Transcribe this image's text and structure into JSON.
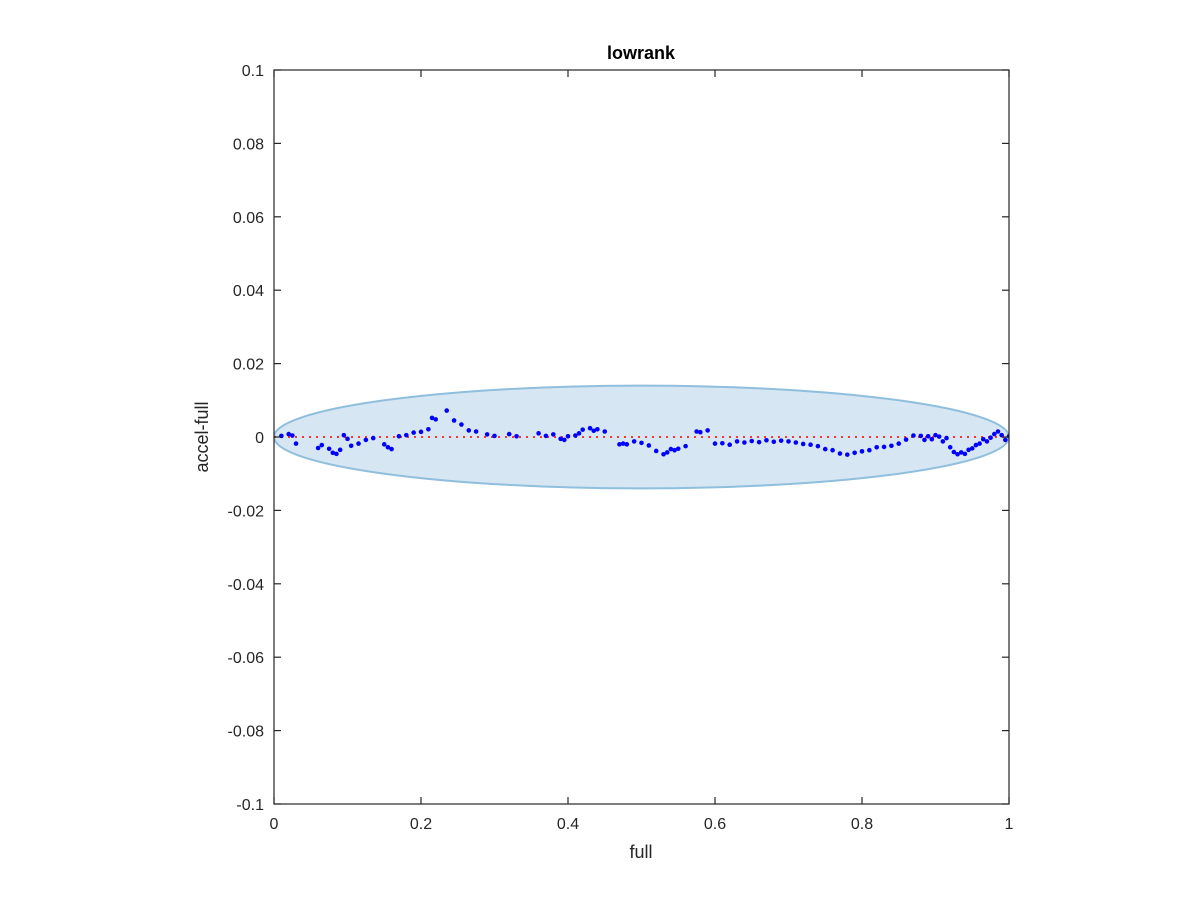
{
  "chart_data": {
    "type": "scatter",
    "title": "lowrank",
    "xlabel": "full",
    "ylabel": "accel-full",
    "xlim": [
      0,
      1
    ],
    "ylim": [
      -0.1,
      0.1
    ],
    "xticks": [
      0,
      0.2,
      0.4,
      0.6,
      0.8,
      1
    ],
    "xtick_labels": [
      "0",
      "0.2",
      "0.4",
      "0.6",
      "0.8",
      "1"
    ],
    "yticks": [
      -0.1,
      -0.08,
      -0.06,
      -0.04,
      -0.02,
      0,
      0.02,
      0.04,
      0.06,
      0.08,
      0.1
    ],
    "ytick_labels": [
      "-0.1",
      "-0.08",
      "-0.06",
      "-0.04",
      "-0.02",
      "0",
      "0.02",
      "0.04",
      "0.06",
      "0.08",
      "0.1"
    ],
    "grid": false,
    "legend": "none",
    "ellipse": {
      "cx": 0.5,
      "cy": 0,
      "rx": 0.5,
      "ry": 0.014,
      "fill": "#d6e6f3",
      "stroke": "#8fbfdd"
    },
    "reference_line": {
      "y": 0,
      "style": "dotted",
      "color": "#ff3333"
    },
    "series": [
      {
        "color": "#0000ff",
        "points": [
          [
            0.01,
            0.0003
          ],
          [
            0.02,
            0.0008
          ],
          [
            0.025,
            0.0004
          ],
          [
            0.03,
            -0.0018
          ],
          [
            0.06,
            -0.003
          ],
          [
            0.065,
            -0.0022
          ],
          [
            0.075,
            -0.0032
          ],
          [
            0.08,
            -0.0043
          ],
          [
            0.085,
            -0.0046
          ],
          [
            0.09,
            -0.0035
          ],
          [
            0.095,
            0.0005
          ],
          [
            0.1,
            -0.0005
          ],
          [
            0.105,
            -0.0024
          ],
          [
            0.115,
            -0.0018
          ],
          [
            0.125,
            -0.0008
          ],
          [
            0.135,
            -0.0003
          ],
          [
            0.15,
            -0.002
          ],
          [
            0.155,
            -0.0028
          ],
          [
            0.16,
            -0.0033
          ],
          [
            0.17,
            0.0002
          ],
          [
            0.18,
            0.0005
          ],
          [
            0.19,
            0.0012
          ],
          [
            0.2,
            0.0014
          ],
          [
            0.21,
            0.0021
          ],
          [
            0.215,
            0.0052
          ],
          [
            0.22,
            0.0048
          ],
          [
            0.235,
            0.0072
          ],
          [
            0.245,
            0.0045
          ],
          [
            0.255,
            0.0034
          ],
          [
            0.265,
            0.0018
          ],
          [
            0.275,
            0.0015
          ],
          [
            0.29,
            0.0007
          ],
          [
            0.3,
            0.0003
          ],
          [
            0.32,
            0.0008
          ],
          [
            0.33,
            0.0002
          ],
          [
            0.36,
            0.001
          ],
          [
            0.37,
            0.0003
          ],
          [
            0.38,
            0.0007
          ],
          [
            0.39,
            -0.0005
          ],
          [
            0.395,
            -0.0008
          ],
          [
            0.4,
            0.0002
          ],
          [
            0.41,
            0.0004
          ],
          [
            0.415,
            0.001
          ],
          [
            0.42,
            0.002
          ],
          [
            0.43,
            0.0024
          ],
          [
            0.435,
            0.0017
          ],
          [
            0.44,
            0.0021
          ],
          [
            0.45,
            0.0015
          ],
          [
            0.47,
            -0.002
          ],
          [
            0.475,
            -0.0018
          ],
          [
            0.48,
            -0.002
          ],
          [
            0.49,
            -0.0012
          ],
          [
            0.5,
            -0.0016
          ],
          [
            0.51,
            -0.0023
          ],
          [
            0.52,
            -0.0038
          ],
          [
            0.53,
            -0.0047
          ],
          [
            0.535,
            -0.0042
          ],
          [
            0.54,
            -0.0033
          ],
          [
            0.545,
            -0.0036
          ],
          [
            0.55,
            -0.0032
          ],
          [
            0.56,
            -0.0025
          ],
          [
            0.575,
            0.0015
          ],
          [
            0.58,
            0.0013
          ],
          [
            0.59,
            0.0018
          ],
          [
            0.6,
            -0.0018
          ],
          [
            0.61,
            -0.0017
          ],
          [
            0.62,
            -0.0021
          ],
          [
            0.63,
            -0.0012
          ],
          [
            0.64,
            -0.0015
          ],
          [
            0.65,
            -0.0011
          ],
          [
            0.66,
            -0.0014
          ],
          [
            0.67,
            -0.0009
          ],
          [
            0.68,
            -0.0013
          ],
          [
            0.69,
            -0.001
          ],
          [
            0.7,
            -0.0012
          ],
          [
            0.71,
            -0.0015
          ],
          [
            0.72,
            -0.0019
          ],
          [
            0.73,
            -0.0021
          ],
          [
            0.74,
            -0.0025
          ],
          [
            0.75,
            -0.0033
          ],
          [
            0.76,
            -0.0036
          ],
          [
            0.77,
            -0.0045
          ],
          [
            0.78,
            -0.0048
          ],
          [
            0.79,
            -0.0043
          ],
          [
            0.8,
            -0.0039
          ],
          [
            0.81,
            -0.0036
          ],
          [
            0.82,
            -0.0028
          ],
          [
            0.83,
            -0.0027
          ],
          [
            0.84,
            -0.0024
          ],
          [
            0.85,
            -0.0018
          ],
          [
            0.86,
            -0.0007
          ],
          [
            0.87,
            0.0004
          ],
          [
            0.88,
            0.0003
          ],
          [
            0.885,
            -0.0008
          ],
          [
            0.89,
            0.0002
          ],
          [
            0.895,
            -0.0006
          ],
          [
            0.9,
            0.0005
          ],
          [
            0.905,
            0.0001
          ],
          [
            0.91,
            -0.0012
          ],
          [
            0.915,
            -0.0003
          ],
          [
            0.92,
            -0.0028
          ],
          [
            0.925,
            -0.0041
          ],
          [
            0.93,
            -0.0047
          ],
          [
            0.935,
            -0.0042
          ],
          [
            0.94,
            -0.0046
          ],
          [
            0.945,
            -0.0035
          ],
          [
            0.95,
            -0.0031
          ],
          [
            0.955,
            -0.0022
          ],
          [
            0.96,
            -0.0018
          ],
          [
            0.965,
            -0.0006
          ],
          [
            0.97,
            -0.0012
          ],
          [
            0.975,
            -0.0002
          ],
          [
            0.98,
            0.0008
          ],
          [
            0.985,
            0.0015
          ],
          [
            0.99,
            0.0005
          ],
          [
            0.995,
            -0.0008
          ],
          [
            1.0,
            0.0002
          ]
        ]
      }
    ]
  }
}
